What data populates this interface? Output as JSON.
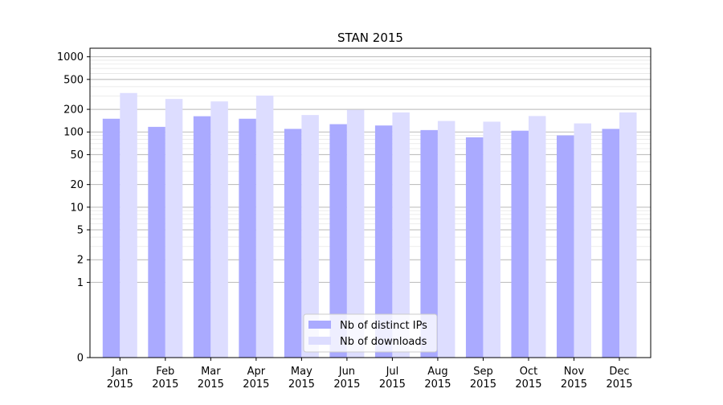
{
  "chart_data": {
    "type": "bar",
    "title": "STAN 2015",
    "xlabel": "",
    "ylabel": "",
    "yscale": "symlog",
    "ylim": [
      0,
      1300
    ],
    "yticks": [
      0,
      1,
      2,
      5,
      10,
      20,
      50,
      100,
      200,
      500,
      1000
    ],
    "ytick_labels": [
      "0",
      "1",
      "2",
      "5",
      "10",
      "20",
      "50",
      "100",
      "200",
      "500",
      "1000"
    ],
    "grid": "horizontal",
    "legend_position": "bottom-center",
    "categories": [
      "Jan\n2015",
      "Feb\n2015",
      "Mar\n2015",
      "Apr\n2015",
      "May\n2015",
      "Jun\n2015",
      "Jul\n2015",
      "Aug\n2015",
      "Sep\n2015",
      "Oct\n2015",
      "Nov\n2015",
      "Dec\n2015"
    ],
    "series": [
      {
        "name": "Nb of distinct IPs",
        "color": "#aaaaff",
        "values": [
          150,
          117,
          162,
          150,
          110,
          127,
          122,
          106,
          85,
          104,
          90,
          110
        ]
      },
      {
        "name": "Nb of downloads",
        "color": "#ddddff",
        "values": [
          330,
          275,
          255,
          305,
          168,
          197,
          182,
          140,
          137,
          163,
          130,
          182
        ]
      }
    ]
  }
}
